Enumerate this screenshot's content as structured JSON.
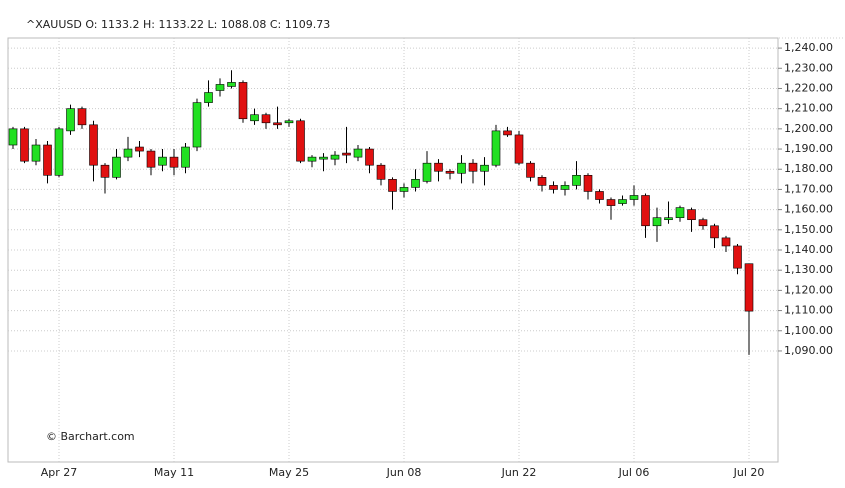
{
  "chart_data": {
    "type": "candlestick",
    "title": "^XAUUSD",
    "ohlc_labels": [
      "O:",
      "H:",
      "L:",
      "C:"
    ],
    "annotation": "© Barchart.com",
    "categories": [
      null,
      null,
      null,
      null,
      "Apr 27",
      null,
      null,
      null,
      null,
      null,
      null,
      null,
      null,
      null,
      "May 11",
      null,
      null,
      null,
      null,
      null,
      null,
      null,
      null,
      null,
      "May 25",
      null,
      null,
      null,
      null,
      null,
      null,
      null,
      null,
      null,
      "Jun 08",
      null,
      null,
      null,
      null,
      null,
      null,
      null,
      null,
      null,
      "Jun 22",
      null,
      null,
      null,
      null,
      null,
      null,
      null,
      null,
      null,
      "Jul 06",
      null,
      null,
      null,
      null,
      null,
      null,
      null,
      null,
      null,
      "Jul 20"
    ],
    "open": [
      1192,
      1200,
      1184,
      1192,
      1177,
      1199,
      1210,
      1202,
      1182,
      1176,
      1186,
      1191,
      1189,
      1182,
      1186,
      1181,
      1191,
      1213,
      1219,
      1221,
      1223,
      1204,
      1207,
      1203,
      1203,
      1204,
      1184,
      1185,
      1185,
      1188,
      1186,
      1190,
      1182,
      1175,
      1169,
      1171,
      1174,
      1183,
      1179,
      1178,
      1183,
      1179,
      1182,
      1199,
      1197,
      1183,
      1176,
      1172,
      1170,
      1172,
      1177,
      1169,
      1165,
      1163,
      1165,
      1167,
      1152,
      1155,
      1156,
      1160,
      1155,
      1152,
      1146,
      1142,
      1133.2
    ],
    "high": [
      1201,
      1201,
      1195,
      1194,
      1201,
      1212,
      1211,
      1204,
      1183,
      1190,
      1196,
      1194,
      1190,
      1190,
      1190,
      1193,
      1215,
      1224,
      1225,
      1229,
      1224,
      1210,
      1208,
      1211,
      1205,
      1205,
      1187,
      1188,
      1189,
      1201,
      1192,
      1191,
      1183,
      1176,
      1173,
      1180,
      1189,
      1185,
      1180,
      1187,
      1185,
      1186,
      1202,
      1201,
      1199,
      1184,
      1177,
      1174,
      1174,
      1184,
      1178,
      1170,
      1166,
      1167,
      1172,
      1168,
      1161,
      1164,
      1162,
      1161,
      1156,
      1153,
      1147,
      1143,
      1133.22
    ],
    "low": [
      1190,
      1183,
      1182,
      1173,
      1176,
      1197,
      1200,
      1174,
      1168,
      1175,
      1184,
      1186,
      1177,
      1179,
      1177,
      1178,
      1189,
      1211,
      1216,
      1220,
      1203,
      1202,
      1200,
      1200,
      1201,
      1183,
      1181,
      1179,
      1182,
      1183,
      1184,
      1178,
      1172,
      1160,
      1166,
      1169,
      1173,
      1174,
      1175,
      1173,
      1173,
      1172,
      1181,
      1196,
      1182,
      1174,
      1169,
      1168,
      1167,
      1170,
      1165,
      1163,
      1155,
      1162,
      1162,
      1146,
      1144,
      1153,
      1154,
      1149,
      1150,
      1141,
      1139,
      1128,
      1088.08
    ],
    "close": [
      1200,
      1184,
      1192,
      1177,
      1200,
      1210,
      1202,
      1182,
      1176,
      1186,
      1190,
      1189,
      1181,
      1186,
      1181,
      1191,
      1213,
      1218,
      1222,
      1223,
      1205,
      1207,
      1203,
      1202,
      1204,
      1184,
      1186,
      1186,
      1187,
      1187,
      1190,
      1182,
      1175,
      1169,
      1171,
      1175,
      1183,
      1179,
      1178,
      1183,
      1179,
      1182,
      1199,
      1197,
      1183,
      1176,
      1172,
      1170,
      1172,
      1177,
      1169,
      1165,
      1162,
      1165,
      1167,
      1152,
      1156,
      1156,
      1161,
      1155,
      1152,
      1146,
      1142,
      1131,
      1109.73
    ],
    "up_color": "#22e022",
    "down_color": "#e01010",
    "ylim": [
      1035,
      1245
    ],
    "yticks": [
      {
        "value": 1090,
        "label": "1,090.00"
      },
      {
        "value": 1100,
        "label": "1,100.00"
      },
      {
        "value": 1110,
        "label": "1,110.00"
      },
      {
        "value": 1120,
        "label": "1,120.00"
      },
      {
        "value": 1130,
        "label": "1,130.00"
      },
      {
        "value": 1140,
        "label": "1,140.00"
      },
      {
        "value": 1150,
        "label": "1,150.00"
      },
      {
        "value": 1160,
        "label": "1,160.00"
      },
      {
        "value": 1170,
        "label": "1,170.00"
      },
      {
        "value": 1180,
        "label": "1,180.00"
      },
      {
        "value": 1190,
        "label": "1,190.00"
      },
      {
        "value": 1200,
        "label": "1,200.00"
      },
      {
        "value": 1210,
        "label": "1,210.00"
      },
      {
        "value": 1220,
        "label": "1,220.00"
      },
      {
        "value": 1230,
        "label": "1,230.00"
      },
      {
        "value": 1240,
        "label": "1,240.00"
      }
    ],
    "grid": true
  }
}
